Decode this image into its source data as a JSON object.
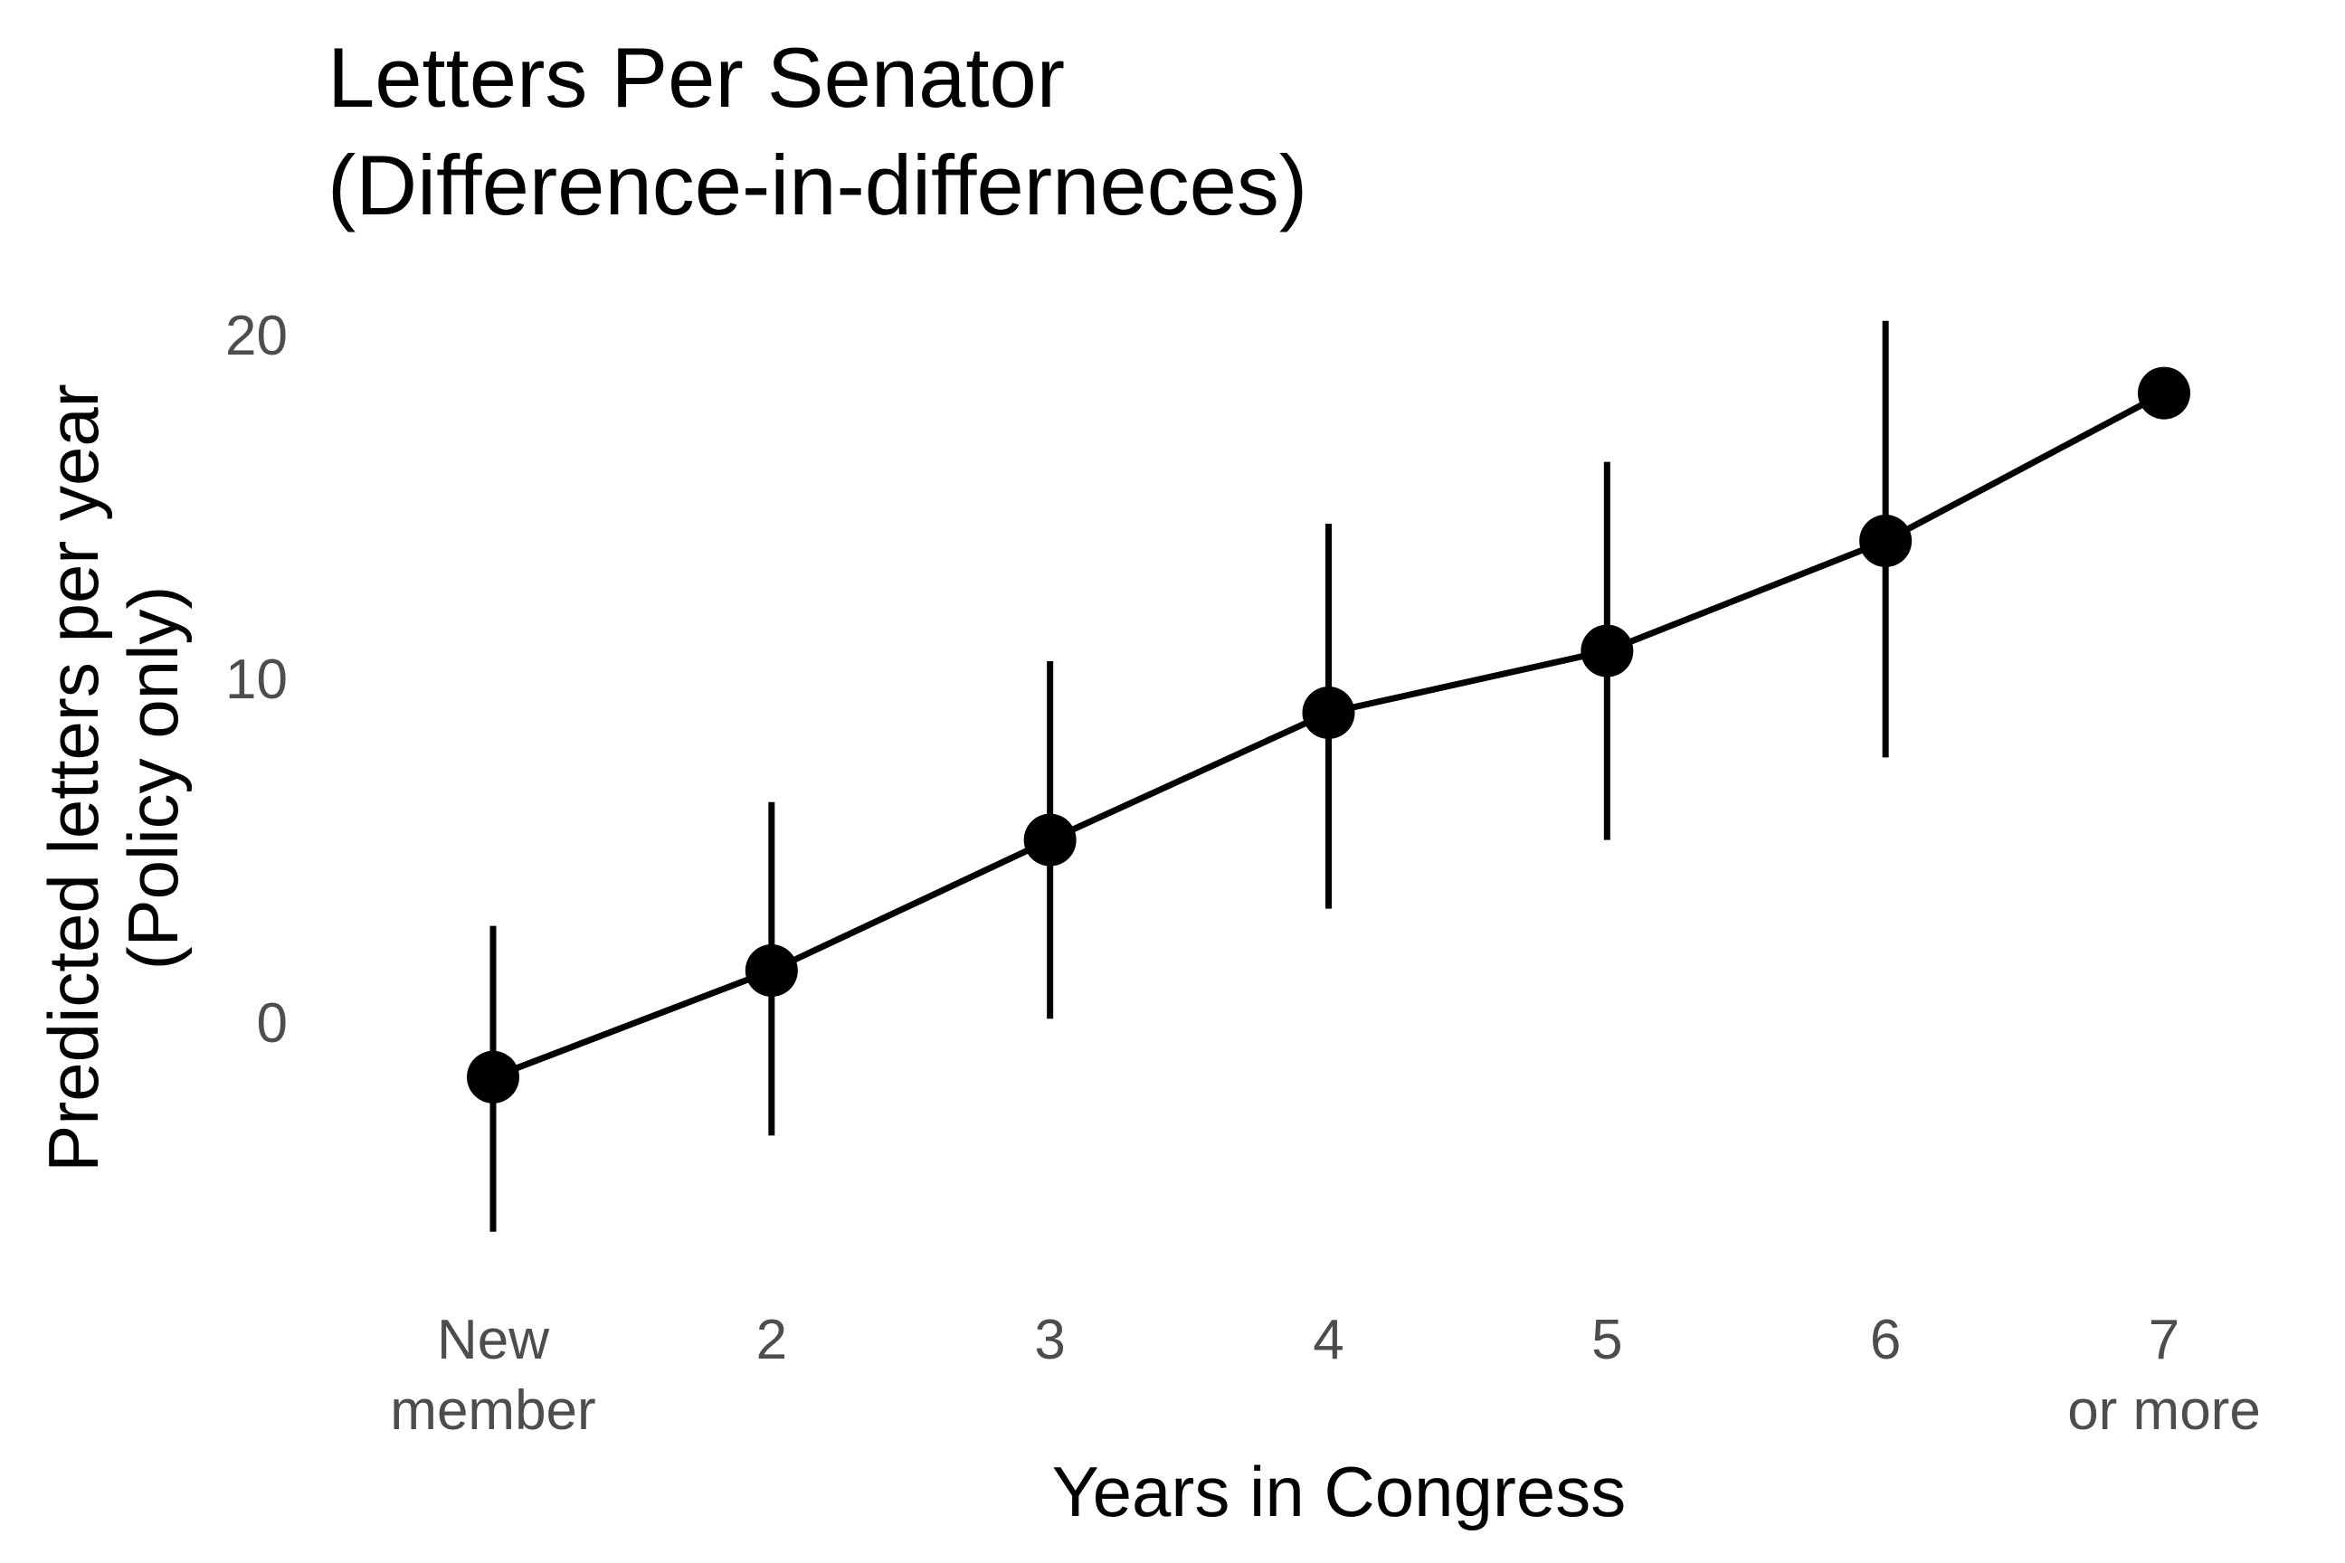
{
  "chart_data": {
    "type": "line",
    "title": "Letters Per Senator",
    "subtitle": "(Difference-in-differneces)",
    "xlabel": "Years in Congress",
    "ylabel": "Predicted letters per year",
    "ylabel_line2": "(Policy only)",
    "categories": [
      [
        "New",
        "member"
      ],
      [
        "2"
      ],
      [
        "3"
      ],
      [
        "4"
      ],
      [
        "5"
      ],
      [
        "6"
      ],
      [
        "7",
        "or more"
      ]
    ],
    "series": [
      {
        "values": [
          -1.6,
          1.5,
          5.3,
          9.0,
          10.8,
          14.0,
          18.3
        ],
        "lower": [
          -6.1,
          -3.3,
          0.1,
          3.3,
          5.3,
          7.7,
          null
        ],
        "upper": [
          2.8,
          6.4,
          10.5,
          14.5,
          16.3,
          20.4,
          null
        ]
      }
    ],
    "yticks": [
      0,
      10,
      20
    ],
    "ylim": [
      -7.5,
      21.5
    ],
    "grid": false,
    "legend": "none",
    "colors": {
      "line": "#000000",
      "point": "#000000",
      "tick_text": "#4d4d4d",
      "title_text": "#000000"
    }
  }
}
